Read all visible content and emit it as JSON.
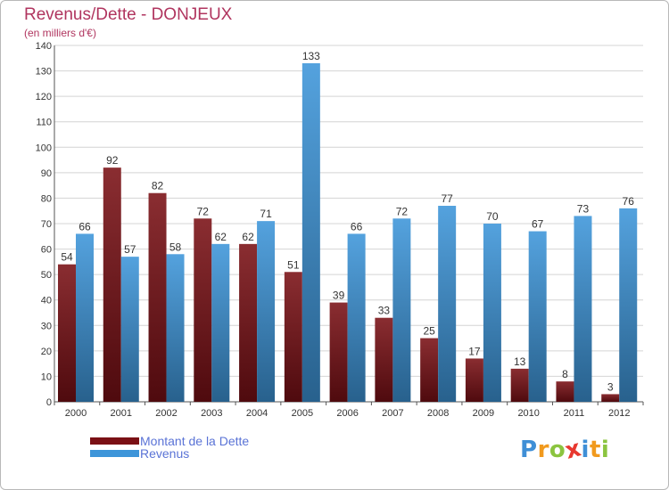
{
  "chart_data": {
    "type": "bar",
    "title": "Revenus/Dette - DONJEUX",
    "subtitle": "(en milliers d'€)",
    "xlabel": "",
    "ylabel": "",
    "ylim": [
      0,
      140
    ],
    "yticks": [
      0,
      10,
      20,
      30,
      40,
      50,
      60,
      70,
      80,
      90,
      100,
      110,
      120,
      130,
      140
    ],
    "grid": true,
    "legend_position": "bottom-left",
    "categories": [
      "2000",
      "2001",
      "2002",
      "2003",
      "2004",
      "2005",
      "2006",
      "2007",
      "2008",
      "2009",
      "2010",
      "2011",
      "2012"
    ],
    "series": [
      {
        "name": "Montant de la Dette",
        "color": "#7a1015",
        "values": [
          54,
          92,
          82,
          72,
          62,
          51,
          39,
          33,
          25,
          17,
          13,
          8,
          3
        ]
      },
      {
        "name": "Revenus",
        "color": "#3d95d9",
        "values": [
          66,
          57,
          58,
          62,
          71,
          133,
          66,
          72,
          77,
          70,
          67,
          73,
          76
        ]
      }
    ]
  },
  "logo": {
    "text": "Proxiti",
    "letters": [
      {
        "ch": "P",
        "color": "#3f8fd6"
      },
      {
        "ch": "r",
        "color": "#f19a1e"
      },
      {
        "ch": "o",
        "color": "#8bc43f"
      },
      {
        "ch": "x",
        "color": "#e8382f"
      },
      {
        "ch": "i",
        "color": "#3f8fd6"
      },
      {
        "ch": "t",
        "color": "#f19a1e"
      },
      {
        "ch": "i",
        "color": "#8bc43f"
      }
    ]
  }
}
